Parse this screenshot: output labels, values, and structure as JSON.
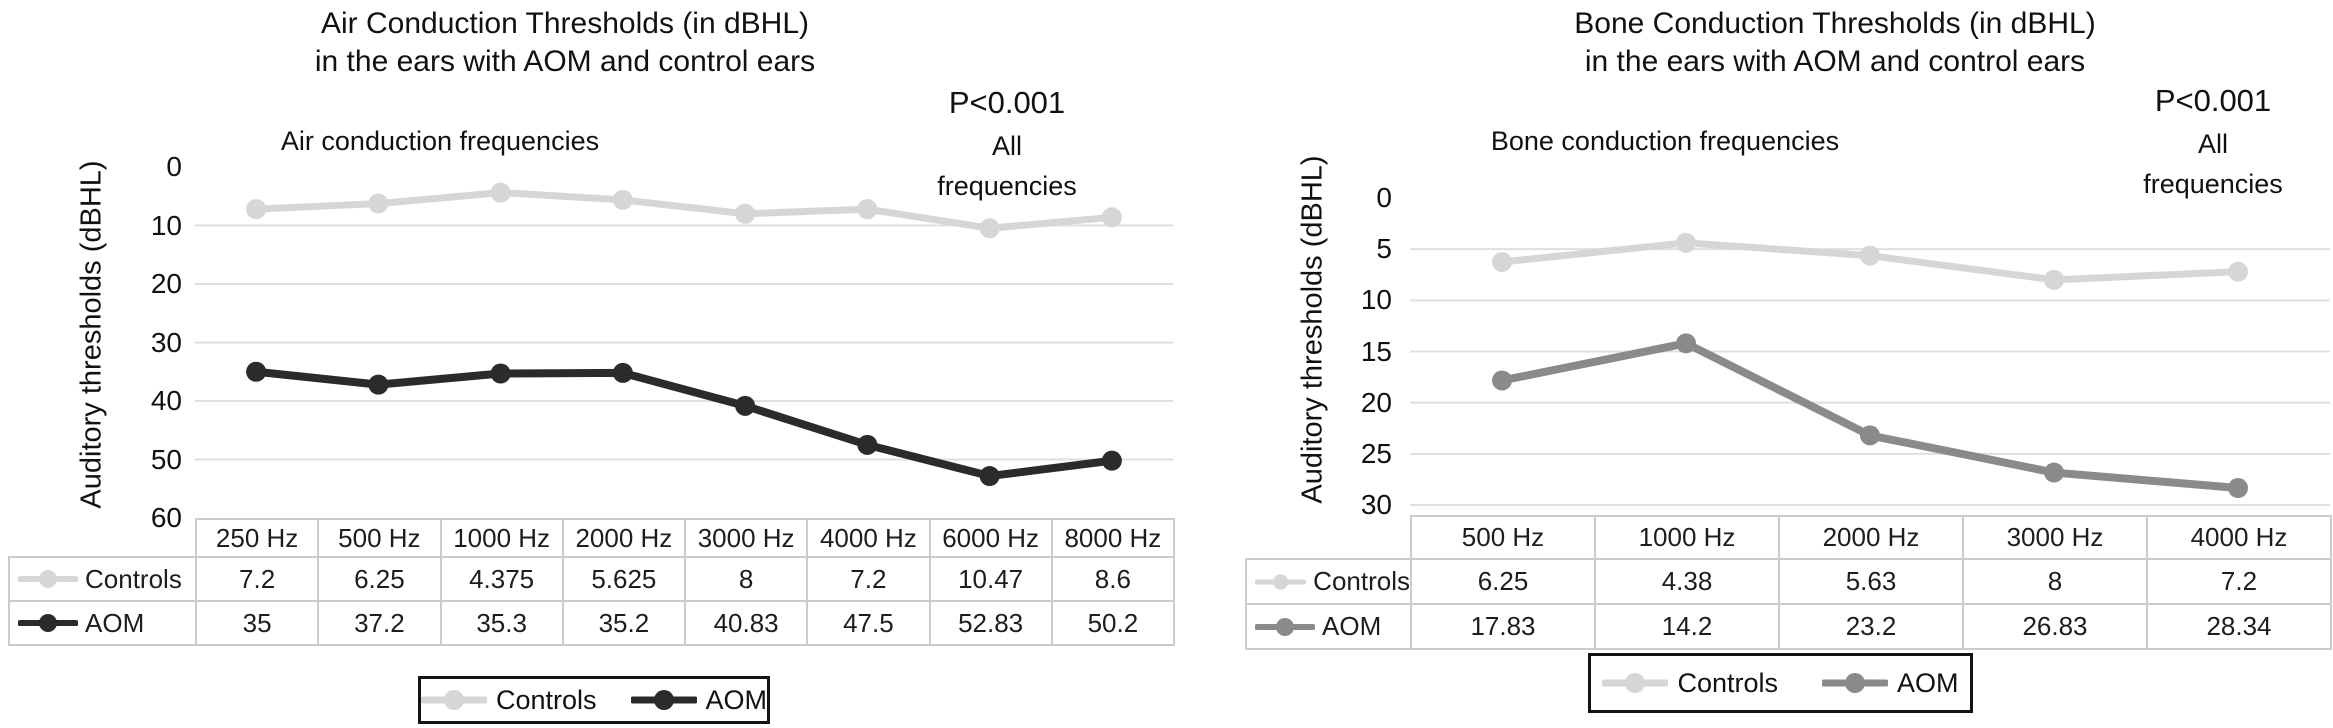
{
  "chart_data": [
    {
      "type": "line",
      "title_line1": "Air Conduction Thresholds (in dBHL)",
      "title_line2": "in the ears with AOM and control ears",
      "x_axis_title": "Air conduction frequencies",
      "y_axis_label": "Auditory thresholds (dBHL)",
      "annotation": {
        "line1": "P<0.001",
        "line2": "All",
        "line3": "frequencies"
      },
      "categories": [
        "250 Hz",
        "500 Hz",
        "1000 Hz",
        "2000 Hz",
        "3000 Hz",
        "4000 Hz",
        "6000 Hz",
        "8000 Hz"
      ],
      "series": [
        {
          "name": "Controls",
          "color": "#d6d6d6",
          "values": [
            7.2,
            6.25,
            4.375,
            5.625,
            8,
            7.2,
            10.47,
            8.6
          ]
        },
        {
          "name": "AOM",
          "color": "#2b2b2b",
          "values": [
            35,
            37.2,
            35.3,
            35.2,
            40.83,
            47.5,
            52.83,
            50.2
          ]
        }
      ],
      "y_ticks": [
        0,
        10,
        20,
        30,
        40,
        50,
        60
      ],
      "ylim": [
        0,
        60
      ],
      "y_axis_inverted": true,
      "grid": true,
      "legend": [
        "Controls",
        "AOM"
      ],
      "legend_position": "bottom",
      "gridline_color": "#dfdfdf"
    },
    {
      "type": "line",
      "title_line1": "Bone Conduction Thresholds (in dBHL)",
      "title_line2": "in the ears with AOM and control ears",
      "x_axis_title": "Bone conduction frequencies",
      "y_axis_label": "Auditory thresholds (dBHL)",
      "annotation": {
        "line1": "P<0.001",
        "line2": "All",
        "line3": "frequencies"
      },
      "categories": [
        "500 Hz",
        "1000 Hz",
        "2000 Hz",
        "3000 Hz",
        "4000 Hz"
      ],
      "series": [
        {
          "name": "Controls",
          "color": "#d6d6d6",
          "values": [
            6.25,
            4.38,
            5.63,
            8,
            7.2
          ]
        },
        {
          "name": "AOM",
          "color": "#8a8a8a",
          "values": [
            17.83,
            14.2,
            23.2,
            26.83,
            28.34
          ]
        }
      ],
      "y_ticks": [
        0,
        5,
        10,
        15,
        20,
        25,
        30
      ],
      "ylim": [
        0,
        30
      ],
      "y_axis_inverted": true,
      "grid": true,
      "legend": [
        "Controls",
        "AOM"
      ],
      "legend_position": "bottom",
      "gridline_color": "#dfdfdf"
    }
  ]
}
